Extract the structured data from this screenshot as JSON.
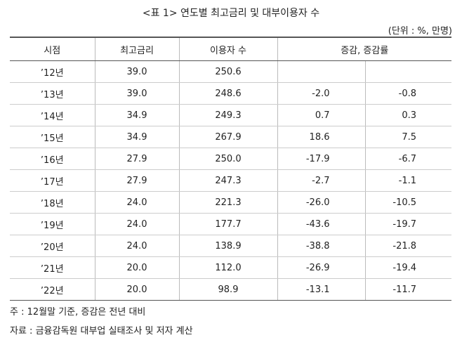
{
  "title": "<표 1> 연도별 최고금리 및 대부이용자 수",
  "unit": "(단위 : %, 만명)",
  "table": {
    "headers": [
      "시점",
      "최고금리",
      "이용자 수",
      "증감, 증감률"
    ],
    "rows": [
      {
        "period": "’12년",
        "rate": "39.0",
        "users": "250.6"
      },
      {
        "period": "’13년",
        "rate": "39.0",
        "users": "248.6",
        "change": "-2.0",
        "change_rate": "-0.8"
      },
      {
        "period": "’14년",
        "rate": "34.9",
        "users": "249.3",
        "change": "0.7",
        "change_rate": "0.3"
      },
      {
        "period": "’15년",
        "rate": "34.9",
        "users": "267.9",
        "change": "18.6",
        "change_rate": "7.5"
      },
      {
        "period": "’16년",
        "rate": "27.9",
        "users": "250.0",
        "change": "-17.9",
        "change_rate": "-6.7"
      },
      {
        "period": "’17년",
        "rate": "27.9",
        "users": "247.3",
        "change": "-2.7",
        "change_rate": "-1.1"
      },
      {
        "period": "’18년",
        "rate": "24.0",
        "users": "221.3",
        "change": "-26.0",
        "change_rate": "-10.5"
      },
      {
        "period": "’19년",
        "rate": "24.0",
        "users": "177.7",
        "change": "-43.6",
        "change_rate": "-19.7"
      },
      {
        "period": "’20년",
        "rate": "24.0",
        "users": "138.9",
        "change": "-38.8",
        "change_rate": "-21.8"
      },
      {
        "period": "’21년",
        "rate": "20.0",
        "users": "112.0",
        "change": "-26.9",
        "change_rate": "-19.4"
      },
      {
        "period": "’22년",
        "rate": "20.0",
        "users": "98.9",
        "change": "-13.1",
        "change_rate": "-11.7"
      }
    ]
  },
  "notes": [
    "주 : 12월말 기준, 증감은 전년 대비",
    "자료 : 금융감독원 대부업 실태조사 및 저자 계산"
  ]
}
